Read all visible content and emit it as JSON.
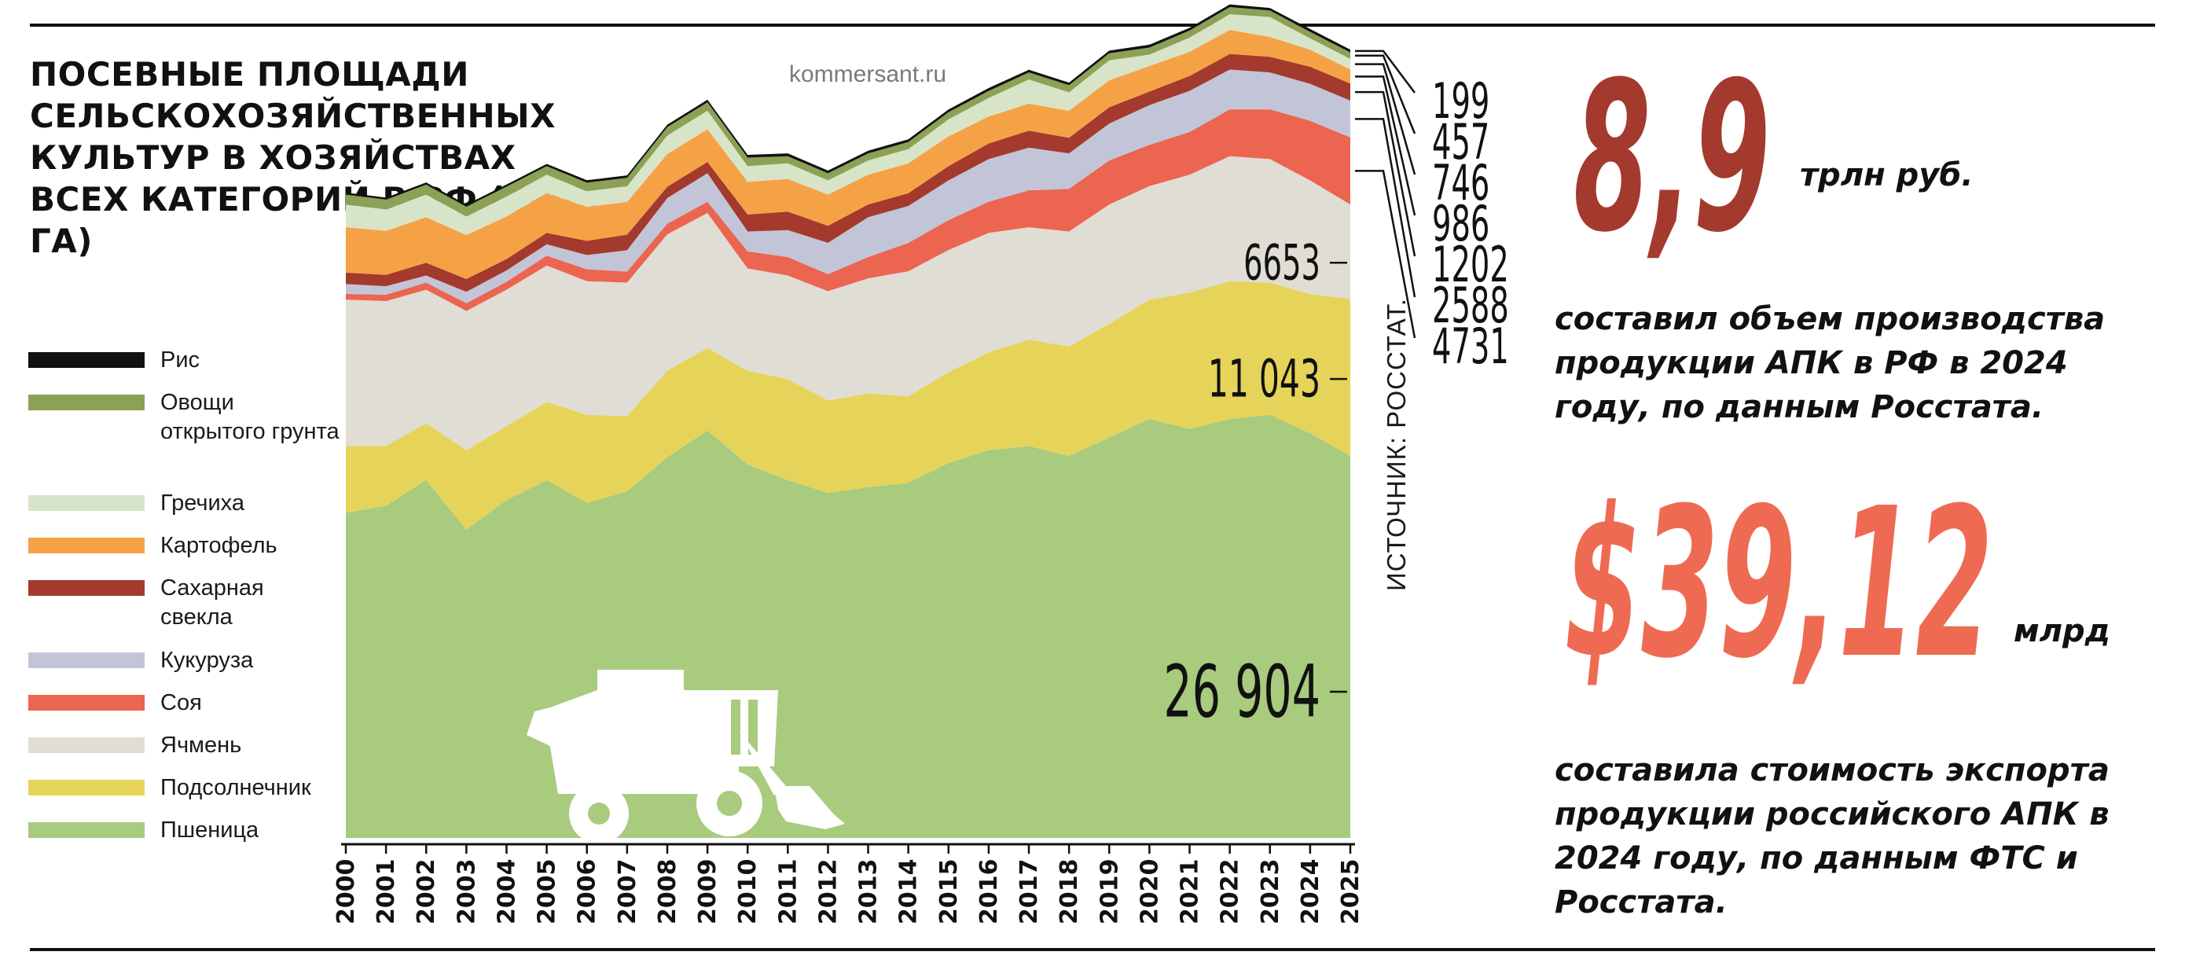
{
  "header": {
    "title": "ПОСЕВНЫЕ ПЛОЩАДИ СЕЛЬСКОХОЗЯЙСТВЕННЫХ КУЛЬТУР В ХОЗЯЙСТВАХ ВСЕХ КАТЕГОРИЙ В РФ (ТЫС. ГА)",
    "site": "kommersant.ru"
  },
  "source": "ИСТОЧНИК: РОССТАТ.",
  "stats": [
    {
      "value": "8,9",
      "unit": "трлн руб.",
      "text": "составил объем производства продукции АПК в РФ в 2024 году, по данным Росстата.",
      "color": "#a33a2d"
    },
    {
      "value": "$39,12",
      "unit": "млрд",
      "text": "составила стоимость экспорта продукции российского АПК в 2024 году, по данным ФТС и Росстата.",
      "color": "#ef6a52"
    }
  ],
  "chart_data": {
    "type": "area",
    "stacked": true,
    "x": [
      "2000",
      "2001",
      "2002",
      "2003",
      "2004",
      "2005",
      "2006",
      "2007",
      "2008",
      "2009",
      "2010",
      "2011",
      "2012",
      "2013",
      "2014",
      "2015",
      "2016",
      "2017",
      "2018",
      "2019",
      "2020",
      "2021",
      "2022",
      "2023",
      "2024",
      "2025"
    ],
    "series": [
      {
        "name": "Пшеница",
        "color": "#a8cb7e",
        "label": "26 904",
        "values": [
          22900,
          23400,
          25200,
          21700,
          23800,
          25200,
          23600,
          24400,
          26800,
          28700,
          26300,
          25200,
          24300,
          24700,
          25000,
          26400,
          27300,
          27600,
          26900,
          28200,
          29500,
          28800,
          29500,
          29800,
          28500,
          26904
        ]
      },
      {
        "name": "Подсолнечник",
        "color": "#e6d45a",
        "label": "11 043",
        "values": [
          4700,
          4200,
          4000,
          5600,
          5200,
          5500,
          6200,
          5300,
          6100,
          5800,
          6600,
          7100,
          6500,
          6600,
          6100,
          6400,
          6900,
          7500,
          7700,
          8000,
          8400,
          9600,
          9700,
          9300,
          9800,
          11043
        ]
      },
      {
        "name": "Ячмень",
        "color": "#e0ddd5",
        "label": "6653",
        "values": [
          10300,
          10200,
          9400,
          9800,
          9600,
          9600,
          9400,
          9400,
          9600,
          9500,
          7200,
          7300,
          7700,
          8100,
          8800,
          8600,
          8400,
          7900,
          8100,
          8400,
          8000,
          8300,
          8800,
          8700,
          8000,
          6653
        ]
      },
      {
        "name": "Соя",
        "color": "#eb6550",
        "label": "4731",
        "values": [
          400,
          450,
          500,
          550,
          560,
          700,
          840,
          780,
          750,
          800,
          1200,
          1300,
          1200,
          1500,
          2000,
          2100,
          2200,
          2600,
          3000,
          3100,
          2900,
          3000,
          3300,
          3500,
          4200,
          4731
        ]
      },
      {
        "name": "Кукуруза",
        "color": "#c2c5d7",
        "label": "2588",
        "values": [
          700,
          600,
          500,
          800,
          800,
          800,
          1000,
          1500,
          1800,
          2000,
          1400,
          1900,
          2200,
          2800,
          2600,
          2800,
          3000,
          3000,
          2500,
          2600,
          2800,
          2900,
          2800,
          2600,
          2600,
          2588
        ]
      },
      {
        "name": "Сахарная свекла",
        "color": "#a33a2d",
        "label": "1202",
        "values": [
          800,
          800,
          900,
          900,
          800,
          800,
          1000,
          1100,
          800,
          800,
          1200,
          1300,
          1200,
          900,
          900,
          1000,
          1100,
          1200,
          1100,
          1150,
          950,
          1050,
          1100,
          1100,
          1200,
          1202
        ]
      },
      {
        "name": "Картофель",
        "color": "#f5a246",
        "label": "986",
        "values": [
          3200,
          3100,
          3200,
          3100,
          3000,
          2800,
          2400,
          2300,
          2300,
          2300,
          2300,
          2300,
          2200,
          2100,
          2100,
          2100,
          1900,
          1900,
          1900,
          1900,
          1800,
          1700,
          1700,
          1400,
          1200,
          986
        ]
      },
      {
        "name": "Гречиха",
        "color": "#d7e4c8",
        "label": "746",
        "values": [
          1600,
          1500,
          1600,
          1300,
          1400,
          1300,
          1100,
          1100,
          1300,
          1300,
          1100,
          1100,
          1000,
          1000,
          1000,
          1200,
          1300,
          1700,
          1300,
          1400,
          800,
          1000,
          1100,
          1400,
          800,
          746
        ]
      },
      {
        "name": "Овощи открытого грунта",
        "color": "#8ba155",
        "label": "457",
        "values": [
          700,
          700,
          700,
          700,
          700,
          600,
          600,
          600,
          600,
          600,
          600,
          500,
          500,
          500,
          500,
          500,
          500,
          500,
          500,
          500,
          500,
          500,
          500,
          460,
          460,
          457
        ]
      },
      {
        "name": "Рис",
        "color": "#111111",
        "label": "199",
        "values": [
          140,
          140,
          150,
          150,
          150,
          160,
          170,
          170,
          170,
          180,
          200,
          200,
          190,
          190,
          190,
          190,
          200,
          190,
          180,
          190,
          200,
          190,
          190,
          180,
          200,
          199
        ]
      }
    ],
    "ylim": [
      0,
      59000
    ],
    "grid": false,
    "legend": "left"
  }
}
